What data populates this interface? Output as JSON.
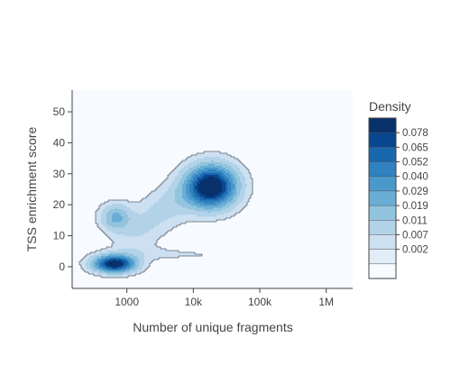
{
  "chart_data": {
    "type": "heatmap",
    "subtype": "density-contour",
    "title": "",
    "xlabel": "Number of unique fragments",
    "ylabel": "TSS enrichment score",
    "x_scale": "log",
    "x_range": [
      150,
      2500000
    ],
    "y_range": [
      -7,
      57
    ],
    "x_ticks": [
      {
        "value": 1000,
        "label": "1000"
      },
      {
        "value": 10000,
        "label": "10k"
      },
      {
        "value": 100000,
        "label": "100k"
      },
      {
        "value": 1000000,
        "label": "1M"
      }
    ],
    "y_ticks": [
      {
        "value": 0,
        "label": "0"
      },
      {
        "value": 10,
        "label": "10"
      },
      {
        "value": 20,
        "label": "20"
      },
      {
        "value": 30,
        "label": "30"
      },
      {
        "value": 40,
        "label": "40"
      },
      {
        "value": 50,
        "label": "50"
      }
    ],
    "grid": false,
    "colorbar": {
      "title": "Density",
      "ticks": [
        "0.078",
        "0.065",
        "0.052",
        "0.040",
        "0.029",
        "0.019",
        "0.011",
        "0.007",
        "0.002"
      ],
      "colors": [
        "#08306b",
        "#08468f",
        "#1967ad",
        "#3081c0",
        "#4b98cb",
        "#6aaed6",
        "#92c4de",
        "#b2d2e8",
        "#cde0f2",
        "#e2edf8",
        "#f7fbff"
      ]
    },
    "density_peaks": [
      {
        "x": 650,
        "y": 1,
        "weight": 1.0
      },
      {
        "x": 19000,
        "y": 26,
        "weight": 1.0
      },
      {
        "x": 680,
        "y": 16,
        "weight": 0.35
      }
    ]
  }
}
